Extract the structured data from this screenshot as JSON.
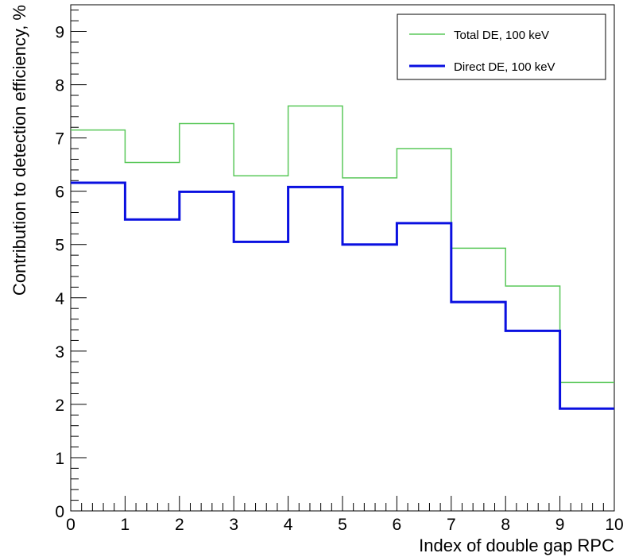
{
  "chart_data": {
    "type": "line",
    "style": "step-histogram",
    "xlabel": "Index of double gap RPC",
    "ylabel": "Contribution to detection efficiency, %",
    "xlim": [
      0,
      10
    ],
    "ylim": [
      0,
      9.5
    ],
    "xticks": [
      0,
      1,
      2,
      3,
      4,
      5,
      6,
      7,
      8,
      9,
      10
    ],
    "yticks": [
      0,
      1,
      2,
      3,
      4,
      5,
      6,
      7,
      8,
      9
    ],
    "bin_edges": [
      0,
      1,
      2,
      3,
      4,
      5,
      6,
      7,
      8,
      9,
      10
    ],
    "grid": false,
    "legend_position": "top-right",
    "series": [
      {
        "name": "Total DE, 100 keV",
        "color": "#5ac85a",
        "values": [
          7.15,
          6.54,
          7.27,
          6.29,
          7.6,
          6.25,
          6.8,
          4.93,
          4.22,
          2.41
        ]
      },
      {
        "name": "Direct DE, 100 keV",
        "color": "#0a10e0",
        "values": [
          6.16,
          5.47,
          5.99,
          5.05,
          6.08,
          5.0,
          5.4,
          3.92,
          3.38,
          1.92
        ]
      }
    ]
  }
}
